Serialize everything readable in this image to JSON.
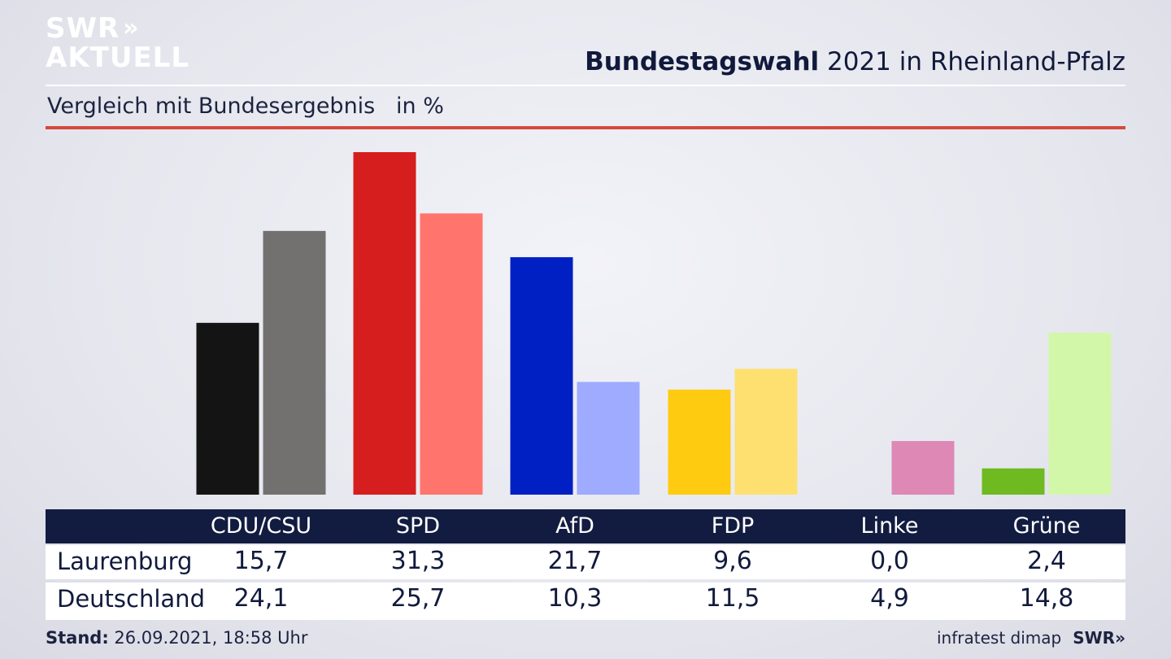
{
  "logo": {
    "line1": "SWR",
    "chevrons": "»",
    "line2": "AKTUELL"
  },
  "header": {
    "title_bold": "Bundestagswahl",
    "title_rest": " 2021 in Rheinland-Pfalz",
    "subtitle": "Vergleich mit Bundesergebnis   in %"
  },
  "chart_data": {
    "type": "bar",
    "title": "Bundestagswahl 2021 in Rheinland-Pfalz",
    "subtitle": "Vergleich mit Bundesergebnis in %",
    "categories": [
      "CDU/CSU",
      "SPD",
      "AfD",
      "FDP",
      "Linke",
      "Grüne"
    ],
    "series": [
      {
        "name": "Laurenburg",
        "values": [
          15.7,
          31.3,
          21.7,
          9.6,
          0.0,
          2.4
        ],
        "colors": [
          "#141414",
          "#d61e1e",
          "#0020c4",
          "#fecb10",
          "#c2004a",
          "#6fba20"
        ]
      },
      {
        "name": "Deutschland",
        "values": [
          24.1,
          25.7,
          10.3,
          11.5,
          4.9,
          14.8
        ],
        "colors": [
          "#737170",
          "#ff746c",
          "#9eabff",
          "#fde070",
          "#de88b6",
          "#d3f7a8"
        ]
      }
    ],
    "display_values": {
      "Laurenburg": [
        "15,7",
        "31,3",
        "21,7",
        "9,6",
        "0,0",
        "2,4"
      ],
      "Deutschland": [
        "24,1",
        "25,7",
        "10,3",
        "11,5",
        "4,9",
        "14,8"
      ]
    },
    "ylim": [
      0,
      31.3
    ],
    "grid": false,
    "legend": "table-below"
  },
  "footer": {
    "stand_label": "Stand:",
    "stand_value": " 26.09.2021, 18:58 Uhr",
    "source": "infratest dimap",
    "brand": "SWR»"
  }
}
